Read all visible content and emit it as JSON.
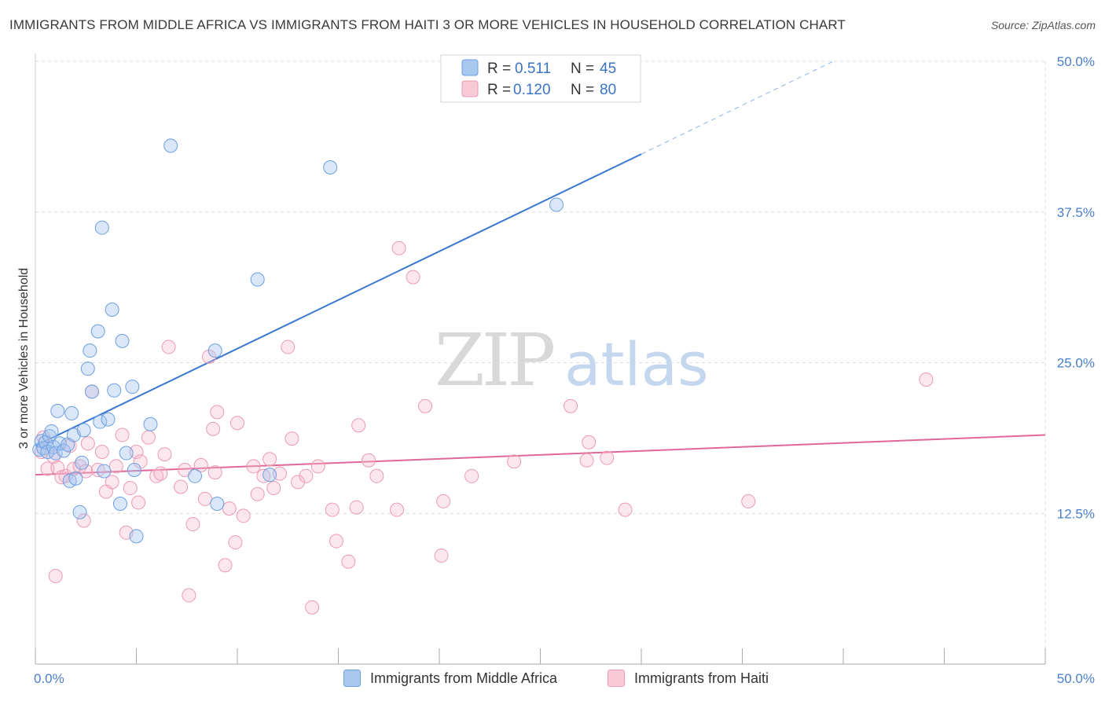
{
  "title": "IMMIGRANTS FROM MIDDLE AFRICA VS IMMIGRANTS FROM HAITI 3 OR MORE VEHICLES IN HOUSEHOLD CORRELATION CHART",
  "source": "Source: ZipAtlas.com",
  "watermark": {
    "zip": "ZIP",
    "atlas": "atlas"
  },
  "legend_box": {
    "rows": [
      {
        "r_label": "R =",
        "r_value": "0.511",
        "n_label": "N =",
        "n_value": "45",
        "color": "#a9c8f0"
      },
      {
        "r_label": "R =",
        "r_value": "0.120",
        "n_label": "N =",
        "n_value": "80",
        "color": "#f5bccd"
      }
    ]
  },
  "bottom_legend": [
    {
      "label": "Immigrants from Middle Africa",
      "color": "#a9c8f0",
      "border": "#6d9fe0"
    },
    {
      "label": "Immigrants from Haiti",
      "color": "#f8c9d7",
      "border": "#ec9ab3"
    }
  ],
  "chart_data": {
    "type": "scatter",
    "ylabel": "3 or more Vehicles in Household",
    "xlim": [
      0,
      50
    ],
    "ylim": [
      0,
      50
    ],
    "x_tick_labels": [
      "0.0%",
      "50.0%"
    ],
    "y_ticks": [
      12.5,
      25.0,
      37.5,
      50.0
    ],
    "y_tick_labels": [
      "12.5%",
      "25.0%",
      "37.5%",
      "50.0%"
    ],
    "grid": true,
    "colors": {
      "blue": "#3a77cf",
      "pink": "#e0679a"
    },
    "series": [
      {
        "name": "Immigrants from Middle Africa",
        "color": "#6d9fe0",
        "trend": {
          "x0": 0,
          "y0": 18.1,
          "x1": 30,
          "y1": 42.3,
          "dash_to_x": 39.5,
          "dash_to_y": 50.0
        },
        "points": [
          [
            0.2,
            17.8
          ],
          [
            0.3,
            18.5
          ],
          [
            0.4,
            17.9
          ],
          [
            0.5,
            18.4
          ],
          [
            0.6,
            17.6
          ],
          [
            0.7,
            18.9
          ],
          [
            0.8,
            19.3
          ],
          [
            0.9,
            18.0
          ],
          [
            1.0,
            17.5
          ],
          [
            1.1,
            21.0
          ],
          [
            1.2,
            18.3
          ],
          [
            1.4,
            17.7
          ],
          [
            1.6,
            18.2
          ],
          [
            1.7,
            15.2
          ],
          [
            1.8,
            20.8
          ],
          [
            1.9,
            19.0
          ],
          [
            2.0,
            15.4
          ],
          [
            2.2,
            12.6
          ],
          [
            2.3,
            16.7
          ],
          [
            2.4,
            19.4
          ],
          [
            2.6,
            24.5
          ],
          [
            2.7,
            26.0
          ],
          [
            2.8,
            22.6
          ],
          [
            3.1,
            27.6
          ],
          [
            3.2,
            20.1
          ],
          [
            3.3,
            36.2
          ],
          [
            3.4,
            16.0
          ],
          [
            3.6,
            20.3
          ],
          [
            3.8,
            29.4
          ],
          [
            3.9,
            22.7
          ],
          [
            4.2,
            13.3
          ],
          [
            4.3,
            26.8
          ],
          [
            4.5,
            17.5
          ],
          [
            4.8,
            23.0
          ],
          [
            4.9,
            16.1
          ],
          [
            5.0,
            10.6
          ],
          [
            5.7,
            19.9
          ],
          [
            6.7,
            43.0
          ],
          [
            7.9,
            15.6
          ],
          [
            8.9,
            26.0
          ],
          [
            9.0,
            13.3
          ],
          [
            11.0,
            31.9
          ],
          [
            11.6,
            15.7
          ],
          [
            14.6,
            41.2
          ],
          [
            25.8,
            38.1
          ]
        ]
      },
      {
        "name": "Immigrants from Haiti",
        "color": "#ec9ab3",
        "trend": {
          "x0": 0,
          "y0": 15.7,
          "x1": 50,
          "y1": 19.0
        },
        "points": [
          [
            0.4,
            18.8
          ],
          [
            0.6,
            16.2
          ],
          [
            0.9,
            17.2
          ],
          [
            1.0,
            7.3
          ],
          [
            1.1,
            16.3
          ],
          [
            1.3,
            15.5
          ],
          [
            1.5,
            15.6
          ],
          [
            1.7,
            18.1
          ],
          [
            1.9,
            16.2
          ],
          [
            2.2,
            16.4
          ],
          [
            2.4,
            11.9
          ],
          [
            2.6,
            18.3
          ],
          [
            2.8,
            22.6
          ],
          [
            3.1,
            16.1
          ],
          [
            3.3,
            17.6
          ],
          [
            3.5,
            14.3
          ],
          [
            3.8,
            15.1
          ],
          [
            4.0,
            16.4
          ],
          [
            4.3,
            19.0
          ],
          [
            4.5,
            10.9
          ],
          [
            4.7,
            14.6
          ],
          [
            5.0,
            17.6
          ],
          [
            5.1,
            13.4
          ],
          [
            5.2,
            16.8
          ],
          [
            5.6,
            18.8
          ],
          [
            6.0,
            15.6
          ],
          [
            6.2,
            15.8
          ],
          [
            6.4,
            17.4
          ],
          [
            6.6,
            26.3
          ],
          [
            7.2,
            14.7
          ],
          [
            7.4,
            16.1
          ],
          [
            7.6,
            5.7
          ],
          [
            7.8,
            11.6
          ],
          [
            8.2,
            16.5
          ],
          [
            8.4,
            13.7
          ],
          [
            8.6,
            25.5
          ],
          [
            8.8,
            19.5
          ],
          [
            8.9,
            15.9
          ],
          [
            9.0,
            20.9
          ],
          [
            9.4,
            8.2
          ],
          [
            9.6,
            12.9
          ],
          [
            9.9,
            10.1
          ],
          [
            10.0,
            20.0
          ],
          [
            10.3,
            12.3
          ],
          [
            10.8,
            16.4
          ],
          [
            11.0,
            14.1
          ],
          [
            11.3,
            15.6
          ],
          [
            11.6,
            17.0
          ],
          [
            11.8,
            14.6
          ],
          [
            12.1,
            15.8
          ],
          [
            12.5,
            26.3
          ],
          [
            12.7,
            18.7
          ],
          [
            13.0,
            15.1
          ],
          [
            13.4,
            15.6
          ],
          [
            13.7,
            4.7
          ],
          [
            14.0,
            16.4
          ],
          [
            14.7,
            12.8
          ],
          [
            14.9,
            10.2
          ],
          [
            15.5,
            8.5
          ],
          [
            15.9,
            13.0
          ],
          [
            16.0,
            19.8
          ],
          [
            16.5,
            16.9
          ],
          [
            16.9,
            15.6
          ],
          [
            17.9,
            12.8
          ],
          [
            18.0,
            34.5
          ],
          [
            18.7,
            32.1
          ],
          [
            19.3,
            21.4
          ],
          [
            20.1,
            9.0
          ],
          [
            20.2,
            13.5
          ],
          [
            21.6,
            15.6
          ],
          [
            23.7,
            16.8
          ],
          [
            26.5,
            21.4
          ],
          [
            27.3,
            16.9
          ],
          [
            27.4,
            18.4
          ],
          [
            28.3,
            17.1
          ],
          [
            29.2,
            12.8
          ],
          [
            35.3,
            13.5
          ],
          [
            44.1,
            23.6
          ],
          [
            0.3,
            17.6
          ],
          [
            2.5,
            16.0
          ]
        ]
      }
    ]
  }
}
